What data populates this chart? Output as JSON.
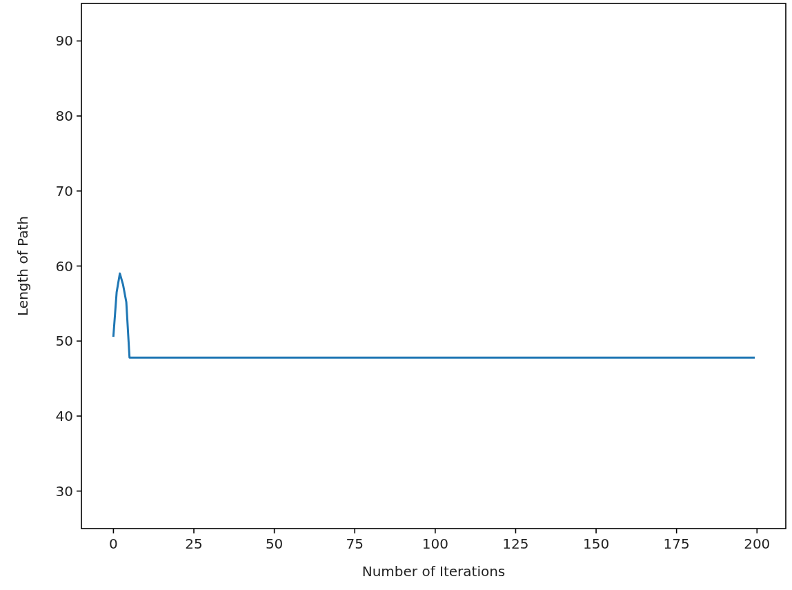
{
  "chart_data": {
    "type": "line",
    "xlabel": "Number of Iterations",
    "ylabel": "Length of Path",
    "x": [
      0,
      1,
      2,
      3,
      4,
      5,
      199
    ],
    "series": [
      {
        "color": "#1f77b4",
        "values": [
          50.7,
          56.5,
          59.0,
          57.5,
          55.2,
          47.8,
          47.8
        ]
      }
    ],
    "xlim": [
      -9.95,
      208.95
    ],
    "xticks": [
      0,
      25,
      50,
      75,
      100,
      125,
      150,
      175,
      200
    ],
    "ylim": [
      25,
      95
    ],
    "yticks": [
      30,
      40,
      50,
      60,
      70,
      80,
      90
    ],
    "grid": false
  }
}
